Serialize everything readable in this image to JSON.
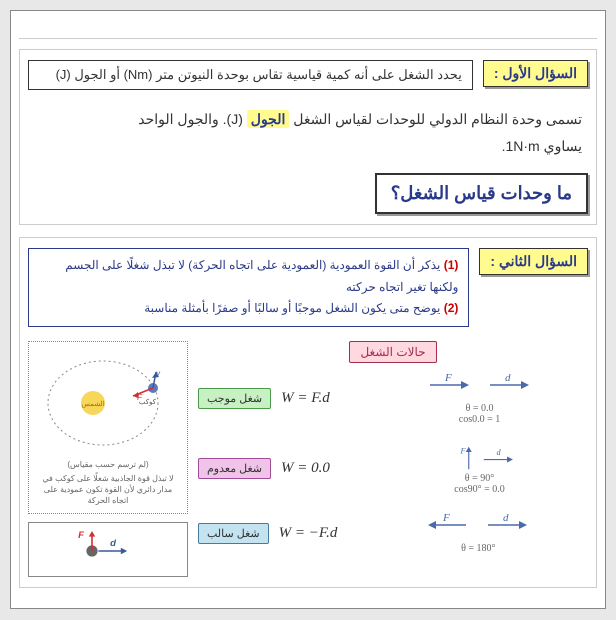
{
  "q1": {
    "label": "السؤال الأول :",
    "definition": "يحدد الشغل على أنه كمية قياسية تقاس بوحدة النيوتن متر (Nm) أو الجول (J)",
    "line1_a": "تسمى وحدة النظام الدولي للوحدات لقياس الشغل ",
    "line1_hl": "الجول",
    "line1_b": " (J). والجول الواحد",
    "line2": "يساوي 1N·m.",
    "question": "ما وحدات قياس الشغل؟"
  },
  "q2": {
    "label": "السؤال الثاني :",
    "point1": "يذكر أن القوة العمودية (العمودية على اتجاه الحركة) لا تبذل شغلًا على الجسم ولكنها تغير اتجاه حركته",
    "point2": "يوضح متى يكون الشغل موجبًا أو سالبًا أو صفرًا بأمثلة مناسبة",
    "cases_title": "حالات الشغل",
    "diagram_caption1": "(لم ترسم حسب مقياس)",
    "diagram_caption2": "لا تبذل قوة الجاذبية شغلًا على كوكب في مدار دائري لأن القوة تكون عمودية على اتجاه الحركة",
    "orbit": {
      "sun_label": "الشمس",
      "planet_label": "كوكب"
    },
    "cases": [
      {
        "tag": "شغل موجب",
        "tag_class": "tag-green",
        "eq": "W = F.d",
        "theta_line": "θ = 0.0",
        "cos_line": "cos0.0 = 1",
        "same_dir": true,
        "perp": false
      },
      {
        "tag": "شغل معدوم",
        "tag_class": "tag-pink",
        "eq": "W = 0.0",
        "theta_line": "θ = 90°",
        "cos_line": "cos90° = 0.0",
        "same_dir": true,
        "perp": true
      },
      {
        "tag": "شغل سالب",
        "tag_class": "tag-blue",
        "eq": "W = −F.d",
        "theta_line": "θ = 180°",
        "cos_line": "",
        "same_dir": false,
        "perp": false
      }
    ],
    "colors": {
      "vec": "#4a6aa8",
      "force_red": "#d03030"
    }
  }
}
